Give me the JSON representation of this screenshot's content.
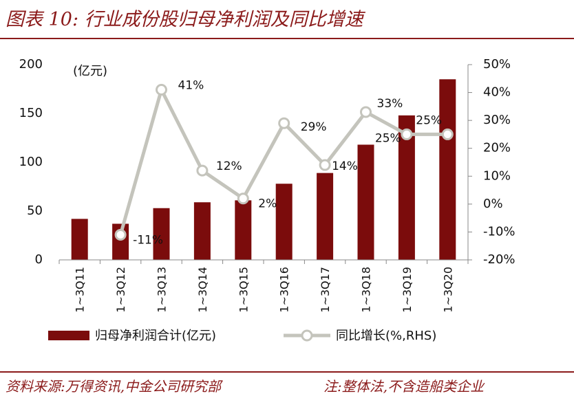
{
  "header": {
    "title": "图表 10:  行业成份股归母净利润及同比增速"
  },
  "footer": {
    "source": "资料来源:万得资讯,中金公司研究部",
    "note": "注:整体法,不含造船类企业"
  },
  "colors": {
    "bar": "#7b0c0c",
    "line": "#c4c4bc",
    "accent": "#8b1a1a"
  },
  "chart_data": {
    "type": "bar+line",
    "categories": [
      "1~3Q11",
      "1~3Q12",
      "1~3Q13",
      "1~3Q14",
      "1~3Q15",
      "1~3Q16",
      "1~3Q17",
      "1~3Q18",
      "1~3Q19",
      "1~3Q20"
    ],
    "unit_label": "(亿元)",
    "series": [
      {
        "name": "归母净利润合计(亿元)",
        "type": "bar",
        "axis": "left",
        "values": [
          42,
          37,
          53,
          59,
          61,
          78,
          89,
          118,
          148,
          185
        ]
      },
      {
        "name": "同比增长(%,RHS)",
        "type": "line",
        "axis": "right",
        "values": [
          null,
          -11,
          41,
          12,
          2,
          29,
          14,
          33,
          25,
          25
        ]
      }
    ],
    "data_labels": [
      null,
      "-11%",
      "41%",
      "12%",
      "2%",
      "29%",
      "14%",
      "33%",
      "25%",
      "25%"
    ],
    "left_axis": {
      "ylim": [
        0,
        200
      ],
      "ticks": [
        "0",
        "50",
        "100",
        "150",
        "200"
      ]
    },
    "right_axis": {
      "ylim": [
        -20,
        50
      ],
      "ticks": [
        "-20%",
        "-10%",
        "0%",
        "10%",
        "20%",
        "30%",
        "40%",
        "50%"
      ]
    },
    "legend_position": "bottom"
  }
}
